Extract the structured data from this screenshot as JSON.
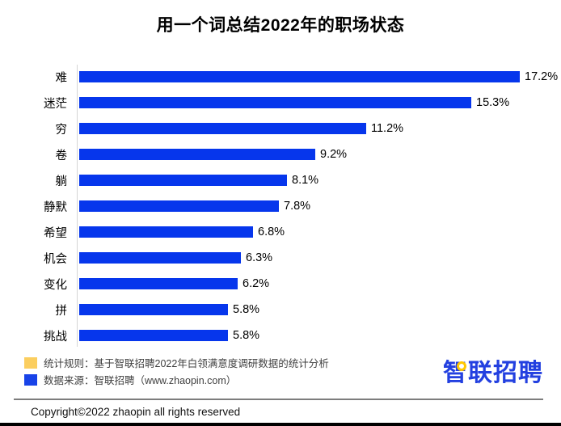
{
  "title": "用一个词总结2022年的职场状态",
  "chart_data": {
    "type": "bar",
    "orientation": "horizontal",
    "title": "用一个词总结2022年的职场状态",
    "categories": [
      "难",
      "迷茫",
      "穷",
      "卷",
      "躺",
      "静默",
      "希望",
      "机会",
      "变化",
      "拼",
      "挑战"
    ],
    "values": [
      17.2,
      15.3,
      11.2,
      9.2,
      8.1,
      7.8,
      6.8,
      6.3,
      6.2,
      5.8,
      5.8
    ],
    "value_suffix": "%",
    "value_labels_position": "outside-end",
    "bar_color": "#0636ec",
    "axis_line_color": "#d6d6d6",
    "xlim": [
      0,
      17.2
    ],
    "grid": false,
    "legend_position": "none"
  },
  "legend": {
    "items": [
      {
        "swatch_color": "#fbce5f",
        "label": "统计规则：基于智联招聘2022年白领满意度调研数据的统计分析"
      },
      {
        "swatch_color": "#1843e8",
        "label": "数据来源：智联招聘（www.zhaopin.com）"
      }
    ]
  },
  "logo": {
    "text": "智联招聘",
    "color": "#2340e0",
    "accent_color": "#ffc800"
  },
  "footer": {
    "copyright": "Copyright©2022 zhaopin all rights reserved"
  }
}
